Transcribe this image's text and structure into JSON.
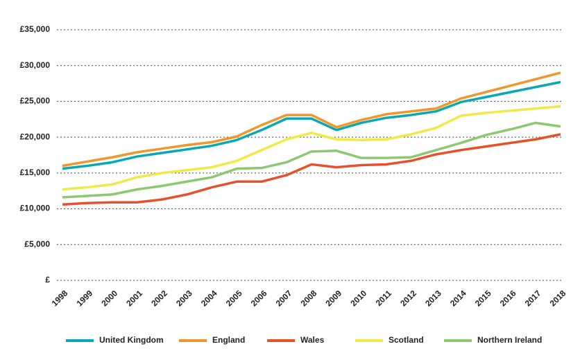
{
  "chart_data": {
    "type": "line",
    "categories": [
      "1998",
      "1999",
      "2000",
      "2001",
      "2002",
      "2003",
      "2004",
      "2005",
      "2006",
      "2007",
      "2008",
      "2009",
      "2010",
      "2011",
      "2012",
      "2013",
      "2014",
      "2015",
      "2016",
      "2017",
      "2018"
    ],
    "series": [
      {
        "name": "United Kingdom",
        "color": "#0aa8b0",
        "values": [
          15600,
          16000,
          16500,
          17300,
          17800,
          18300,
          18800,
          19600,
          21000,
          22600,
          22600,
          21000,
          22000,
          22700,
          23100,
          23600,
          24900,
          25600,
          26300,
          27000,
          27700
        ]
      },
      {
        "name": "England",
        "color": "#f0962a",
        "values": [
          16000,
          16600,
          17200,
          17900,
          18400,
          18900,
          19300,
          20100,
          21700,
          23100,
          23100,
          21400,
          22400,
          23200,
          23600,
          24000,
          25400,
          26300,
          27200,
          28100,
          29000
        ]
      },
      {
        "name": "Wales",
        "color": "#e8502b",
        "values": [
          10600,
          10800,
          10900,
          10900,
          11300,
          12000,
          13000,
          13800,
          13800,
          14700,
          16200,
          15800,
          16100,
          16200,
          16700,
          17600,
          18200,
          18700,
          19200,
          19700,
          20400
        ]
      },
      {
        "name": "Scotland",
        "color": "#f0ea46",
        "values": [
          12700,
          13000,
          13400,
          14400,
          15000,
          15400,
          15800,
          16700,
          18200,
          19700,
          20600,
          19700,
          19600,
          19700,
          20400,
          21300,
          23000,
          23400,
          23700,
          24000,
          24300
        ]
      },
      {
        "name": "Northern Ireland",
        "color": "#8cc870",
        "values": [
          11600,
          11800,
          12000,
          12700,
          13200,
          13800,
          14400,
          15600,
          15700,
          16500,
          18000,
          18100,
          17100,
          17100,
          17200,
          18200,
          19200,
          20300,
          21100,
          22000,
          21500
        ]
      }
    ],
    "ylim": [
      0,
      35000
    ],
    "yticks": [
      {
        "value": 0,
        "label": "£"
      },
      {
        "value": 5000,
        "label": "£5,000"
      },
      {
        "value": 10000,
        "label": "£10,000"
      },
      {
        "value": 15000,
        "label": "£15,000"
      },
      {
        "value": 20000,
        "label": "£20,000"
      },
      {
        "value": 25000,
        "label": "£25,000"
      },
      {
        "value": 30000,
        "label": "£30,000"
      },
      {
        "value": 35000,
        "label": "£35,000"
      }
    ],
    "grid": true
  }
}
